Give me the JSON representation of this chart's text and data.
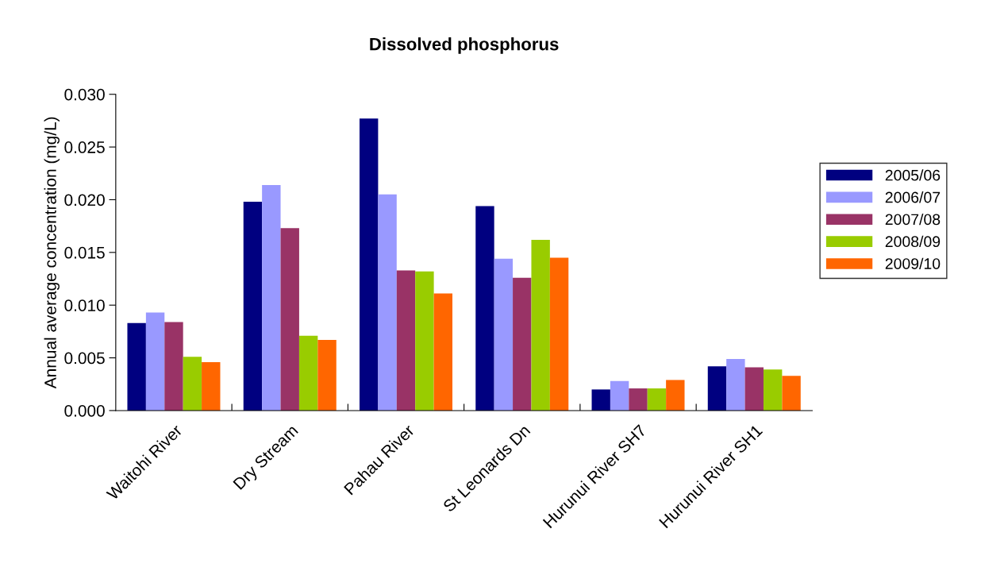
{
  "chart_data": {
    "type": "bar",
    "title": "Dissolved phosphorus",
    "ylabel": "Annual average concentration (mg/L)",
    "categories": [
      "Waitohi River",
      "Dry Stream",
      "Pahau River",
      "St Leonards Dn",
      "Hurunui River SH7",
      "Hurunui River SH1"
    ],
    "series": [
      {
        "name": "2005/06",
        "color": "#000080",
        "values": [
          0.0083,
          0.0198,
          0.0277,
          0.0194,
          0.002,
          0.0042
        ]
      },
      {
        "name": "2006/07",
        "color": "#9999ff",
        "values": [
          0.0093,
          0.0214,
          0.0205,
          0.0144,
          0.0028,
          0.0049
        ]
      },
      {
        "name": "2007/08",
        "color": "#993366",
        "values": [
          0.0084,
          0.0173,
          0.0133,
          0.0126,
          0.0021,
          0.0041
        ]
      },
      {
        "name": "2008/09",
        "color": "#99cc00",
        "values": [
          0.0051,
          0.0071,
          0.0132,
          0.0162,
          0.0021,
          0.0039
        ]
      },
      {
        "name": "2009/10",
        "color": "#ff6600",
        "values": [
          0.0046,
          0.0067,
          0.0111,
          0.0145,
          0.0029,
          0.0033
        ]
      }
    ],
    "ylim": [
      0,
      0.03
    ],
    "yticks": [
      {
        "value": 0,
        "label": "0.000"
      },
      {
        "value": 0.005,
        "label": "0.005"
      },
      {
        "value": 0.01,
        "label": "0.010"
      },
      {
        "value": 0.015,
        "label": "0.015"
      },
      {
        "value": 0.02,
        "label": "0.020"
      },
      {
        "value": 0.025,
        "label": "0.025"
      },
      {
        "value": 0.03,
        "label": "0.030"
      }
    ],
    "legend": "right",
    "grid": false
  }
}
